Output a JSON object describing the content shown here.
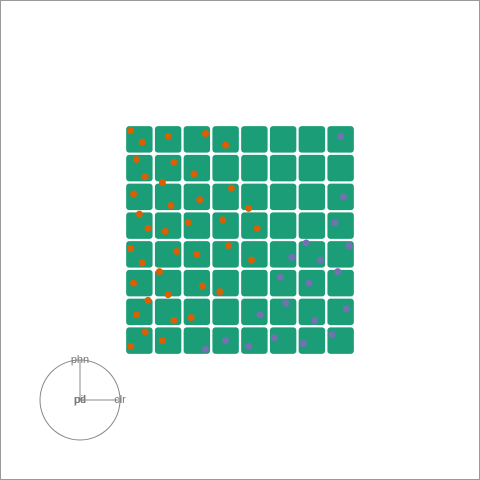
{
  "chart_data": {
    "type": "scatter",
    "xlim": [
      0,
      8
    ],
    "ylim": [
      0,
      8
    ],
    "series": [
      {
        "color": "#1b9e77",
        "marker": "square",
        "x": [
          0.5,
          1.5,
          2.5,
          3.5,
          4.5,
          5.5,
          6.5,
          7.5,
          0.5,
          1.5,
          2.5,
          3.5,
          4.5,
          5.5,
          6.5,
          7.5,
          0.5,
          1.5,
          2.5,
          3.5,
          4.5,
          5.5,
          6.5,
          7.5,
          0.5,
          1.5,
          2.5,
          3.5,
          4.5,
          5.5,
          6.5,
          7.5,
          0.5,
          1.5,
          2.5,
          3.5,
          4.5,
          5.5,
          6.5,
          7.5,
          0.5,
          1.5,
          2.5,
          3.5,
          4.5,
          5.5,
          6.5,
          7.5,
          0.5,
          1.5,
          2.5,
          3.5,
          4.5,
          5.5,
          6.5,
          7.5,
          0.5,
          1.5,
          2.5,
          3.5,
          4.5,
          5.5,
          6.5,
          7.5
        ],
        "y": [
          0.5,
          0.5,
          0.5,
          0.5,
          0.5,
          0.5,
          0.5,
          0.5,
          1.5,
          1.5,
          1.5,
          1.5,
          1.5,
          1.5,
          1.5,
          1.5,
          2.5,
          2.5,
          2.5,
          2.5,
          2.5,
          2.5,
          2.5,
          2.5,
          3.5,
          3.5,
          3.5,
          3.5,
          3.5,
          3.5,
          3.5,
          3.5,
          4.5,
          4.5,
          4.5,
          4.5,
          4.5,
          4.5,
          4.5,
          4.5,
          5.5,
          5.5,
          5.5,
          5.5,
          5.5,
          5.5,
          5.5,
          5.5,
          6.5,
          6.5,
          6.5,
          6.5,
          6.5,
          6.5,
          6.5,
          6.5,
          7.5,
          7.5,
          7.5,
          7.5,
          7.5,
          7.5,
          7.5,
          7.5
        ]
      },
      {
        "color": "#d95f02",
        "marker": "circle",
        "x": [
          0.2,
          0.7,
          0.4,
          0.8,
          0.3,
          0.6,
          0.2,
          0.8,
          0.5,
          0.3,
          0.7,
          0.4,
          0.6,
          0.2,
          1.3,
          1.7,
          1.5,
          1.2,
          1.8,
          1.4,
          1.6,
          1.3,
          1.7,
          1.5,
          2.3,
          2.7,
          2.5,
          2.2,
          2.6,
          2.4,
          2.8,
          3.3,
          3.6,
          3.4,
          3.7,
          3.5,
          4.4,
          4.6,
          4.3
        ],
        "y": [
          0.3,
          0.8,
          1.4,
          1.9,
          2.5,
          3.2,
          3.7,
          4.4,
          4.9,
          5.6,
          6.2,
          6.8,
          7.4,
          7.8,
          0.5,
          1.2,
          2.1,
          2.9,
          3.6,
          4.3,
          5.2,
          6.0,
          6.7,
          7.6,
          1.3,
          2.4,
          3.5,
          4.6,
          5.4,
          6.3,
          7.7,
          2.2,
          3.8,
          4.7,
          5.8,
          7.3,
          3.3,
          4.4,
          5.1
        ]
      },
      {
        "color": "#7570b3",
        "marker": "circle",
        "x": [
          4.3,
          4.7,
          5.2,
          5.6,
          5.4,
          6.2,
          6.6,
          6.4,
          6.8,
          7.2,
          7.7,
          7.4,
          7.8,
          7.3,
          7.6,
          7.5,
          3.5,
          2.8,
          6.3,
          5.8
        ],
        "y": [
          0.3,
          1.4,
          0.6,
          1.8,
          2.7,
          0.4,
          1.2,
          2.5,
          3.3,
          0.7,
          1.6,
          2.9,
          3.8,
          4.6,
          5.5,
          7.6,
          0.5,
          0.2,
          3.9,
          3.4
        ]
      }
    ],
    "projection": [
      {
        "name": "phn",
        "dx": 0,
        "dy": 1
      },
      {
        "name": "pil",
        "dx": 0,
        "dy": 0
      },
      {
        "name": "pd",
        "dx": 0,
        "dy": 0
      },
      {
        "name": "clr",
        "dx": 1,
        "dy": 0
      }
    ]
  }
}
